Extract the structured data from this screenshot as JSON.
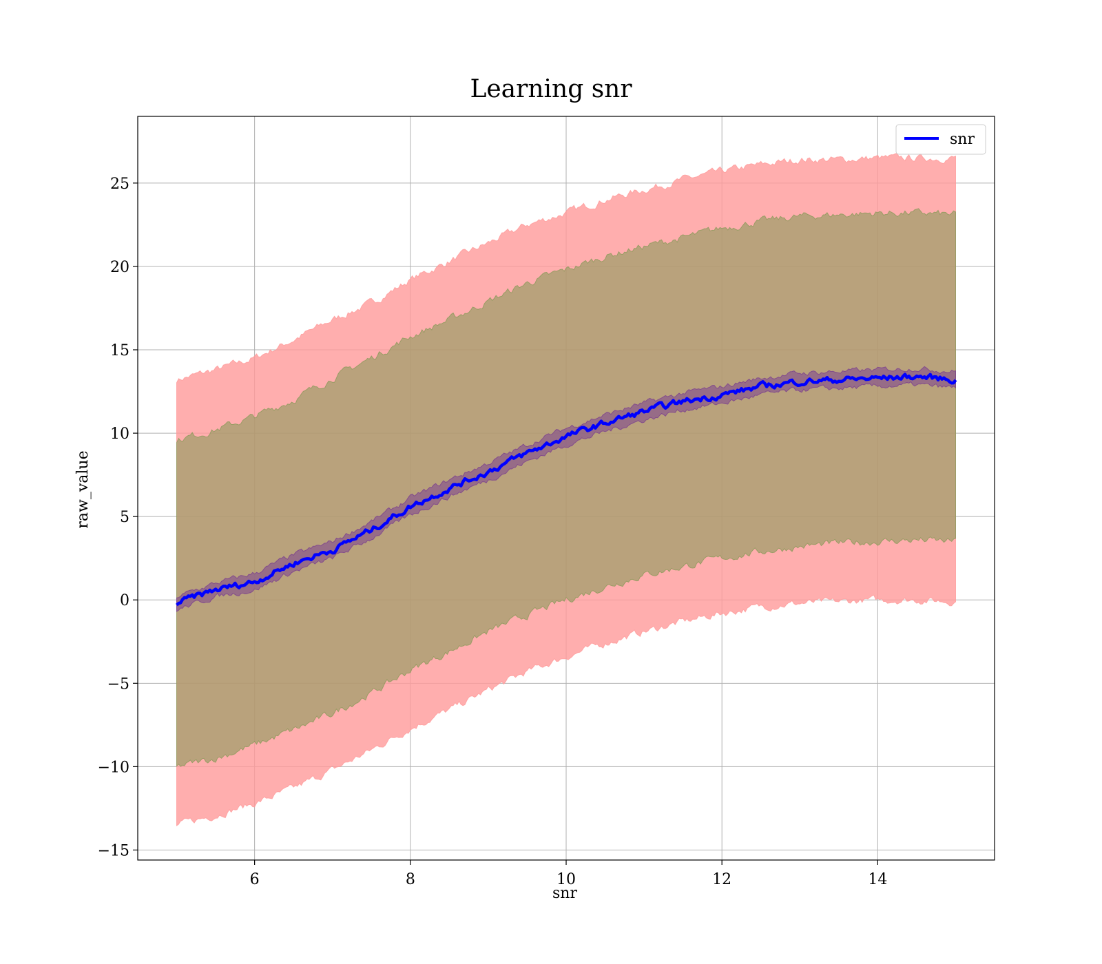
{
  "chart_data": {
    "type": "line",
    "title": "Learning snr",
    "xlabel": "snr",
    "ylabel": "raw_value",
    "xlim": [
      4.5,
      15.5
    ],
    "ylim": [
      -15.6,
      29.0
    ],
    "xticks": [
      6,
      8,
      10,
      12,
      14
    ],
    "xtick_labels": [
      "6",
      "8",
      "10",
      "12",
      "14"
    ],
    "yticks": [
      -15,
      -10,
      -5,
      0,
      5,
      10,
      15,
      20,
      25
    ],
    "ytick_labels": [
      "−15",
      "−10",
      "−5",
      "0",
      "5",
      "10",
      "15",
      "20",
      "25"
    ],
    "grid": true,
    "legend": {
      "position": "top-right",
      "entries": [
        {
          "label": "snr",
          "color": "#0000ff"
        }
      ]
    },
    "x": [
      5.0,
      5.5,
      6.0,
      6.5,
      7.0,
      7.5,
      8.0,
      8.5,
      9.0,
      9.5,
      10.0,
      10.5,
      11.0,
      11.5,
      12.0,
      12.5,
      13.0,
      13.5,
      14.0,
      14.5,
      15.0
    ],
    "series": [
      {
        "name": "snr",
        "color": "#0000ff",
        "values": [
          -0.2,
          0.6,
          1.1,
          2.2,
          3.0,
          4.2,
          5.6,
          6.7,
          7.7,
          8.8,
          9.8,
          10.6,
          11.3,
          11.9,
          12.3,
          12.8,
          13.1,
          13.2,
          13.3,
          13.4,
          13.2
        ],
        "band_inner": {
          "color": "#7b3f8f",
          "upper": [
            0.2,
            1.0,
            1.6,
            2.7,
            3.5,
            4.7,
            6.1,
            7.2,
            8.2,
            9.3,
            10.3,
            11.1,
            11.8,
            12.4,
            12.8,
            13.3,
            13.6,
            13.7,
            13.8,
            13.9,
            13.7
          ],
          "lower": [
            -0.6,
            0.2,
            0.6,
            1.7,
            2.5,
            3.7,
            5.1,
            6.2,
            7.2,
            8.3,
            9.3,
            10.1,
            10.8,
            11.4,
            11.8,
            12.3,
            12.6,
            12.7,
            12.8,
            12.9,
            12.7
          ]
        },
        "band_mid": {
          "color": "#8b9a5a",
          "upper": [
            9.6,
            10.2,
            11.0,
            12.0,
            13.3,
            14.5,
            15.8,
            16.8,
            17.9,
            19.0,
            19.8,
            20.6,
            21.2,
            21.7,
            22.3,
            22.7,
            23.0,
            23.1,
            23.2,
            23.2,
            23.1
          ],
          "lower": [
            -10.0,
            -9.5,
            -8.7,
            -7.8,
            -6.8,
            -5.6,
            -4.2,
            -3.1,
            -1.9,
            -0.9,
            0.0,
            0.8,
            1.5,
            2.0,
            2.5,
            2.9,
            3.2,
            3.4,
            3.5,
            3.6,
            3.5
          ]
        },
        "band_outer": {
          "color": "#ff9a9a",
          "upper": [
            13.2,
            13.8,
            14.5,
            15.6,
            16.8,
            17.8,
            19.2,
            20.3,
            21.4,
            22.5,
            23.2,
            24.0,
            24.6,
            25.2,
            25.7,
            26.1,
            26.4,
            26.4,
            26.5,
            26.5,
            26.5
          ],
          "lower": [
            -13.5,
            -12.9,
            -12.2,
            -11.3,
            -10.2,
            -9.0,
            -7.7,
            -6.6,
            -5.4,
            -4.3,
            -3.4,
            -2.6,
            -1.9,
            -1.3,
            -0.8,
            -0.4,
            -0.2,
            -0.1,
            0.0,
            0.0,
            -0.1
          ]
        }
      }
    ]
  }
}
